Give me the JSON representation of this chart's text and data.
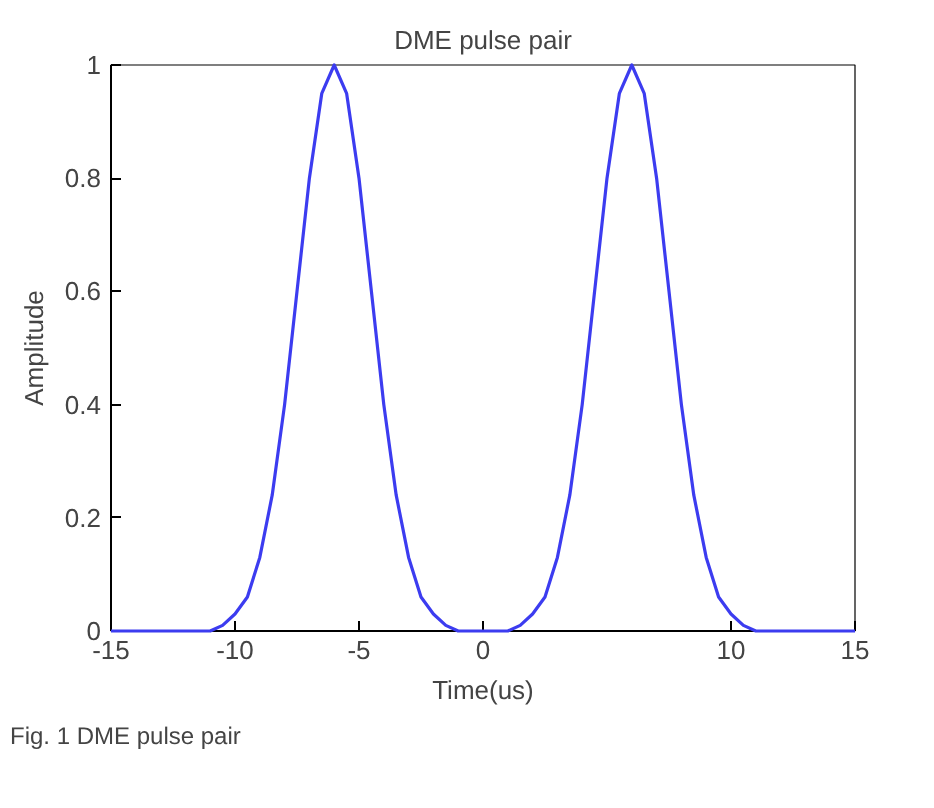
{
  "chart_data": {
    "type": "line",
    "title": "DME pulse pair",
    "xlabel": "Time(us)",
    "ylabel": "Amplitude",
    "annotations": [
      "Fig. 1 DME pulse pair"
    ],
    "x": [
      -15,
      -14.5,
      -14,
      -13.5,
      -13,
      -12.5,
      -12,
      -11.5,
      -11,
      -10.5,
      -10,
      -9.5,
      -9,
      -8.5,
      -8,
      -7.5,
      -7,
      -6.5,
      -6,
      -5.5,
      -5,
      -4.5,
      -4,
      -3.5,
      -3,
      -2.5,
      -2,
      -1.5,
      -1,
      -0.5,
      0,
      0.5,
      1,
      1.5,
      2,
      2.5,
      3,
      3.5,
      4,
      4.5,
      5,
      5.5,
      6,
      6.5,
      7,
      7.5,
      8,
      8.5,
      9,
      9.5,
      10,
      10.5,
      11,
      11.5,
      12,
      12.5,
      13,
      13.5,
      14,
      14.5,
      15
    ],
    "series": [
      {
        "color": "#3c3cf0",
        "values": [
          0,
          0,
          0,
          0,
          0,
          0,
          0,
          0,
          0,
          0.01,
          0.03,
          0.06,
          0.13,
          0.24,
          0.4,
          0.6,
          0.8,
          0.95,
          1,
          0.95,
          0.8,
          0.6,
          0.4,
          0.24,
          0.13,
          0.06,
          0.03,
          0.01,
          0,
          0,
          0,
          0,
          0,
          0.01,
          0.03,
          0.06,
          0.13,
          0.24,
          0.4,
          0.6,
          0.8,
          0.95,
          1,
          0.95,
          0.8,
          0.6,
          0.4,
          0.24,
          0.13,
          0.06,
          0.03,
          0.01,
          0,
          0,
          0,
          0,
          0,
          0,
          0,
          0,
          0
        ]
      }
    ],
    "xlim": [
      -15,
      15
    ],
    "ylim": [
      0,
      1
    ],
    "xticks": [
      -15,
      -10,
      -5,
      0,
      10,
      15
    ],
    "yticks": [
      0,
      0.2,
      0.4,
      0.6,
      0.8,
      1
    ],
    "grid": false,
    "marker": "none",
    "line_style": "solid"
  }
}
